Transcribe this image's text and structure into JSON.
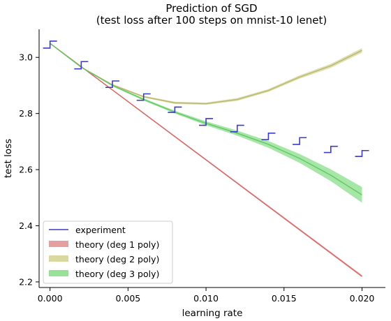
{
  "chart_data": {
    "type": "line",
    "title": "Prediction of SGD",
    "subtitle": "(test loss after 100 steps on mnist-10 lenet)",
    "xlabel": "learning rate",
    "ylabel": "test loss",
    "xlim": [
      -0.0007,
      0.0215
    ],
    "ylim": [
      2.18,
      3.1
    ],
    "xticks": [
      0.0,
      0.005,
      0.01,
      0.015,
      0.02
    ],
    "xtick_labels": [
      "0.000",
      "0.005",
      "0.010",
      "0.015",
      "0.020"
    ],
    "yticks": [
      2.2,
      2.4,
      2.6,
      2.8,
      3.0
    ],
    "ytick_labels": [
      "2.2",
      "2.4",
      "2.6",
      "2.8",
      "3.0"
    ],
    "grid": false,
    "legend_position": "lower-left",
    "experiment": {
      "name": "experiment",
      "color": "#3b3bc4",
      "x": [
        0.0,
        0.002,
        0.004,
        0.006,
        0.008,
        0.01,
        0.012,
        0.014,
        0.016,
        0.018,
        0.02
      ],
      "low": [
        3.033,
        2.959,
        2.893,
        2.847,
        2.804,
        2.758,
        2.735,
        2.707,
        2.69,
        2.661,
        2.647
      ],
      "high": [
        3.058,
        2.985,
        2.916,
        2.87,
        2.823,
        2.782,
        2.758,
        2.73,
        2.714,
        2.683,
        2.668
      ]
    },
    "series": [
      {
        "name": "theory (deg 1 poly)",
        "color": "#d46a6a",
        "band_color": "#e4a0a0",
        "x": [
          0.0,
          0.02
        ],
        "y": [
          3.05,
          2.22
        ],
        "half_width": [
          0.002,
          0.004
        ]
      },
      {
        "name": "theory (deg 2 poly)",
        "color": "#b8b870",
        "band_color": "#d8d8a0",
        "x": [
          0.0,
          0.002,
          0.004,
          0.006,
          0.008,
          0.01,
          0.012,
          0.014,
          0.016,
          0.018,
          0.02
        ],
        "y": [
          3.05,
          2.965,
          2.902,
          2.86,
          2.838,
          2.835,
          2.85,
          2.882,
          2.93,
          2.97,
          3.025
        ],
        "half_width": [
          0.001,
          0.002,
          0.003,
          0.003,
          0.004,
          0.004,
          0.005,
          0.005,
          0.006,
          0.007,
          0.008
        ]
      },
      {
        "name": "theory (deg 3 poly)",
        "color": "#66c566",
        "band_color": "#97e297",
        "x": [
          0.0,
          0.002,
          0.004,
          0.006,
          0.008,
          0.01,
          0.012,
          0.014,
          0.016,
          0.018,
          0.02
        ],
        "y": [
          3.05,
          2.965,
          2.9,
          2.85,
          2.805,
          2.765,
          2.73,
          2.69,
          2.64,
          2.58,
          2.51
        ],
        "half_width": [
          0.001,
          0.002,
          0.003,
          0.004,
          0.005,
          0.007,
          0.009,
          0.012,
          0.016,
          0.021,
          0.028
        ]
      }
    ]
  }
}
